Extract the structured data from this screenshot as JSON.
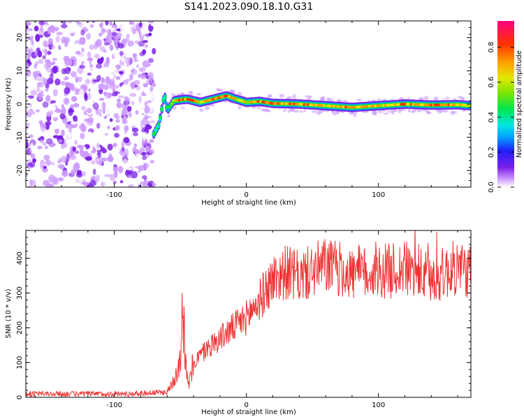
{
  "title": "S141.2023.090.18.10.G31",
  "colorbar": {
    "label": "Normalized spectral amplitude",
    "ticks": [
      "0.0",
      "0.2",
      "0.4",
      "0.6",
      "0.8"
    ],
    "tick_values": [
      0.0,
      0.2,
      0.4,
      0.6,
      0.8
    ],
    "range": [
      0,
      0.95
    ]
  },
  "chart_data": [
    {
      "type": "heatmap",
      "xlabel": "Height of straight line (km)",
      "ylabel": "Frequency (Hz)",
      "xlim": [
        -167,
        170
      ],
      "ylim": [
        -25,
        25
      ],
      "xticks": [
        -100,
        0,
        100
      ],
      "xtick_labels": [
        "-100",
        "0",
        "100"
      ],
      "yticks": [
        -20,
        -10,
        0,
        10,
        20
      ],
      "ytick_labels": [
        "-20",
        "-10",
        "0",
        "10",
        "20"
      ],
      "noise_region_x": [
        -167,
        -70
      ],
      "ridge": {
        "x": [
          -70,
          -66,
          -62,
          -60,
          -55,
          -45,
          -35,
          -25,
          -15,
          -8,
          0,
          10,
          20,
          40,
          60,
          80,
          100,
          120,
          140,
          160,
          170
        ],
        "y": [
          -9,
          -6,
          3,
          -2,
          1,
          1.5,
          0.5,
          1.5,
          2.5,
          1.5,
          0.5,
          0.8,
          0.2,
          0,
          -0.5,
          -1,
          -0.5,
          0,
          -0.3,
          -0.2,
          -0.5
        ],
        "amplitude": [
          0.5,
          0.5,
          0.45,
          0.4,
          0.8,
          0.9,
          0.8,
          0.85,
          0.9,
          0.8,
          0.75,
          0.9,
          0.95,
          0.85,
          0.8,
          0.9,
          0.8,
          0.85,
          0.9,
          0.85,
          0.7
        ]
      }
    },
    {
      "type": "line",
      "xlabel": "Height of straight line (km)",
      "ylabel": "SNR (10 * v/v)",
      "xlim": [
        -167,
        170
      ],
      "ylim": [
        0,
        480
      ],
      "xticks": [
        -100,
        0,
        100
      ],
      "xtick_labels": [
        "-100",
        "0",
        "100"
      ],
      "yticks": [
        0,
        100,
        200,
        300,
        400
      ],
      "ytick_labels": [
        "0",
        "100",
        "200",
        "300",
        "400"
      ],
      "line_color": "#ee3333",
      "series": [
        {
          "x": [
            -167,
            -130,
            -90,
            -60,
            -55,
            -50,
            -48,
            -46,
            -44,
            -40,
            -30,
            -20,
            -10,
            0,
            10,
            20,
            30,
            40,
            60,
            80,
            100,
            120,
            140,
            160,
            170
          ],
          "y": [
            10,
            10,
            10,
            15,
            50,
            120,
            280,
            90,
            30,
            100,
            140,
            170,
            200,
            230,
            280,
            340,
            360,
            345,
            380,
            355,
            360,
            370,
            340,
            375,
            360
          ]
        }
      ]
    }
  ]
}
